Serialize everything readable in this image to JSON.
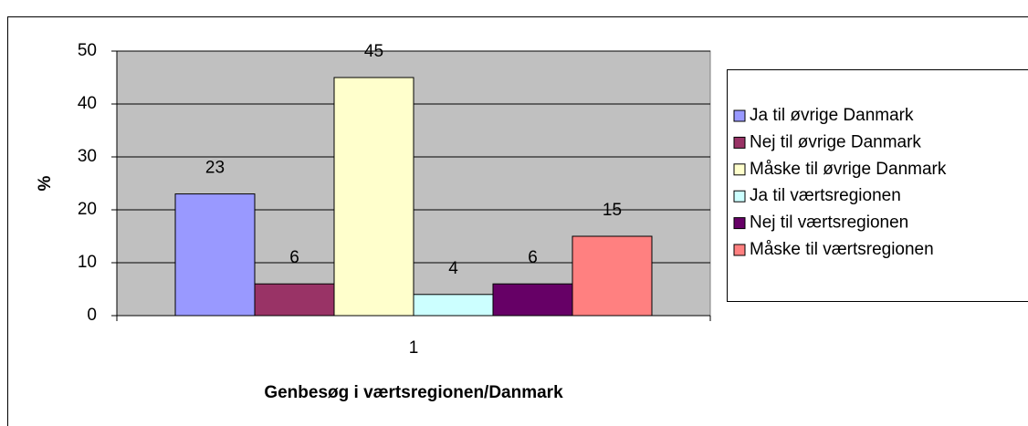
{
  "chart_data": {
    "type": "bar",
    "categories": [
      "1"
    ],
    "series": [
      {
        "name": "Ja til øvrige Danmark",
        "color": "#9999ff",
        "values": [
          23
        ]
      },
      {
        "name": "Nej til øvrige Danmark",
        "color": "#993366",
        "values": [
          6
        ]
      },
      {
        "name": "Måske til øvrige Danmark",
        "color": "#ffffcc",
        "values": [
          45
        ]
      },
      {
        "name": "Ja til værtsregionen",
        "color": "#ccffff",
        "values": [
          4
        ]
      },
      {
        "name": "Nej til værtsregionen",
        "color": "#660066",
        "values": [
          6
        ]
      },
      {
        "name": "Måske til værtsregionen",
        "color": "#ff8080",
        "values": [
          15
        ]
      }
    ],
    "ylim": [
      0,
      50
    ],
    "yticks": [
      0,
      10,
      20,
      30,
      40,
      50
    ],
    "grid": true,
    "y_label": "%",
    "x_label": "Genbesøg i værtsregionen/Danmark",
    "plot_background": "#c0c0c0",
    "legend": "right"
  }
}
